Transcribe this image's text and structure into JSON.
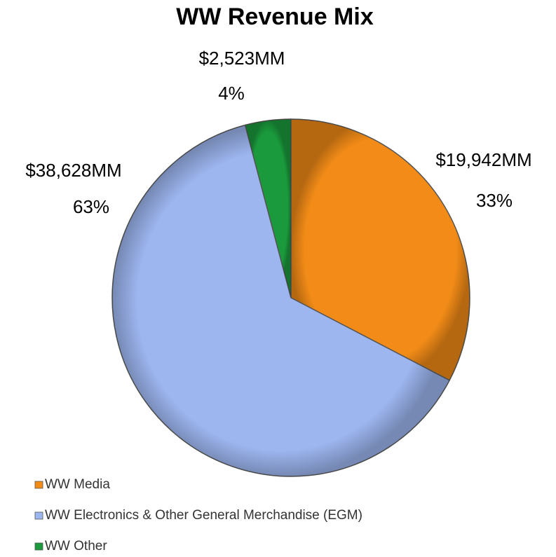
{
  "chart_data": {
    "type": "pie",
    "title": "WW Revenue Mix",
    "categories": [
      "WW Media",
      "WW Electronics & Other General Merchandise (EGM)",
      "WW Other"
    ],
    "values": [
      19942,
      38628,
      2523
    ],
    "value_labels": [
      "$19,942MM",
      "$38,628MM",
      "$2,523MM"
    ],
    "percent_labels": [
      "33%",
      "63%",
      "4%"
    ],
    "colors": [
      "#f28b17",
      "#9db6f0",
      "#1a9a3c"
    ],
    "legend": "bottom"
  }
}
